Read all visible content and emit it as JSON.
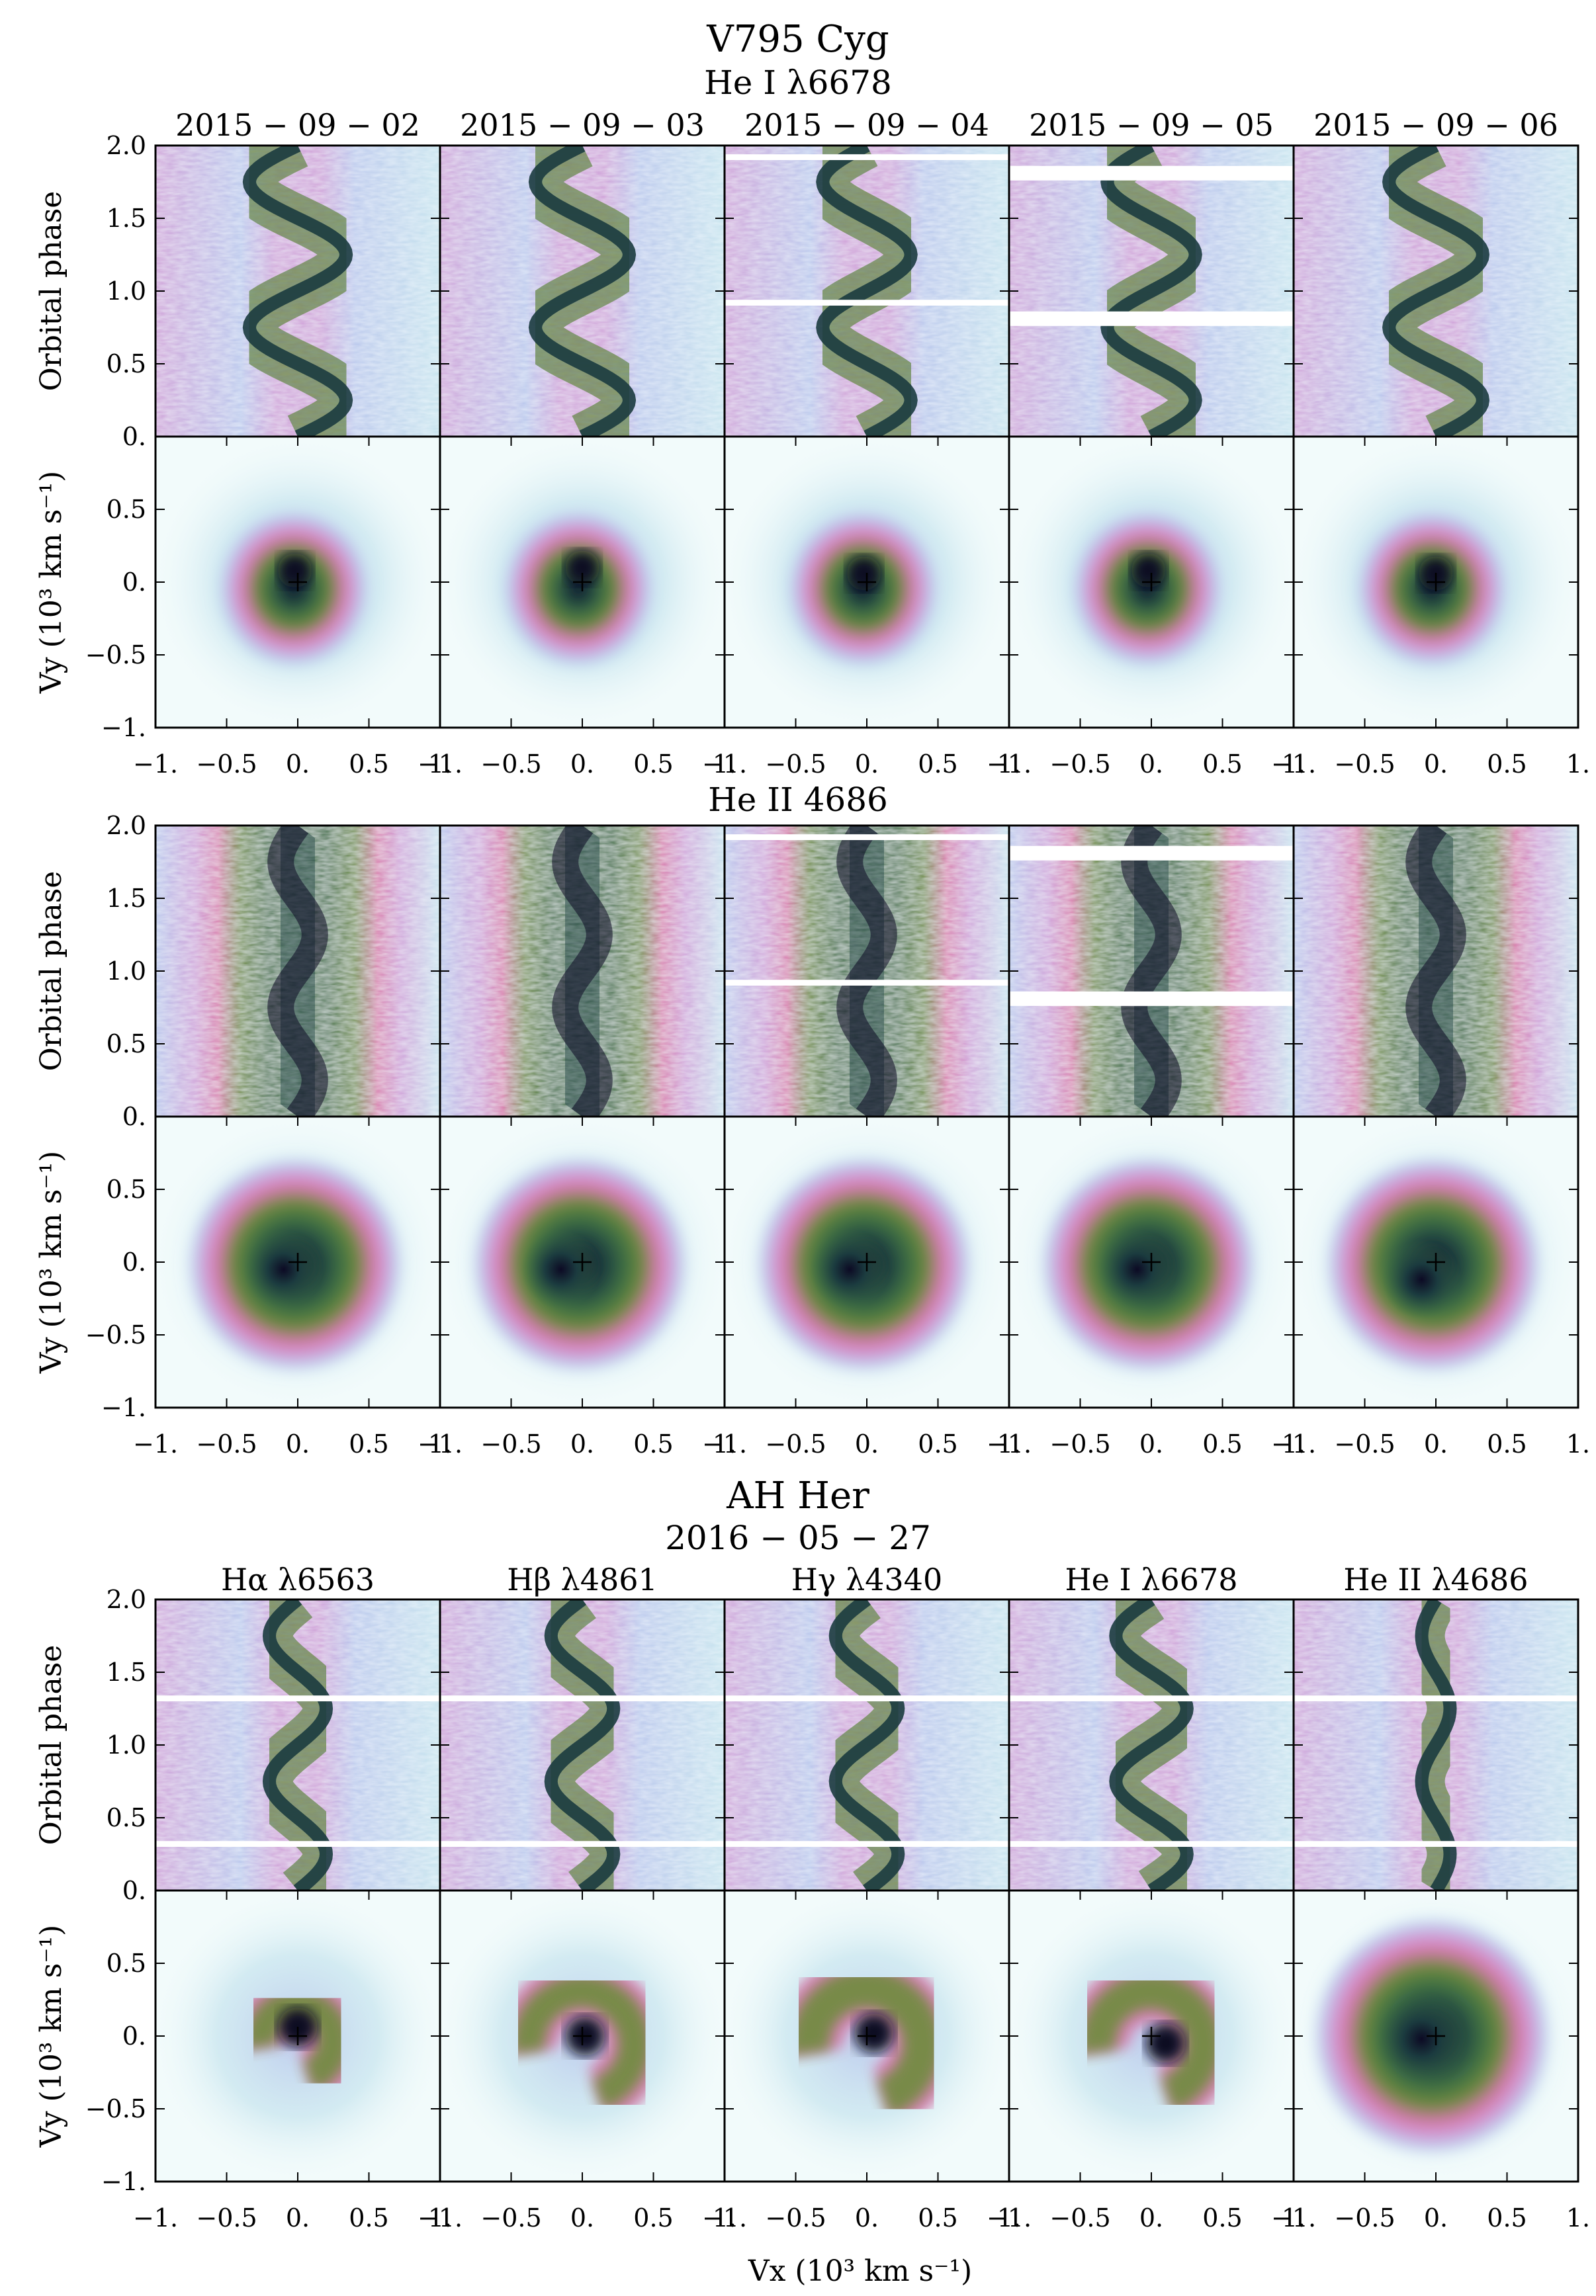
{
  "figure": {
    "title_top": "V795 Cyg",
    "line1": "He I λ6678",
    "line2": "He II 4686",
    "title_bottom": "AH Her",
    "date_bottom": "2016 − 05 − 27",
    "xlabel": "Vx (10³ km s⁻¹)",
    "ylabel_trail": "Orbital phase",
    "ylabel_map": "Vy (10³ km s⁻¹)"
  },
  "colors": {
    "c0": "#f2fbfb",
    "c1": "#c6e4ee",
    "c2": "#b8c6ec",
    "c3": "#cf9fd8",
    "c4": "#d777ab",
    "c5": "#6e8b3d",
    "c6": "#3d6f45",
    "c7": "#1b3b3f",
    "c8": "#0c0a24"
  },
  "chart_data": [
    {
      "type": "heatmap",
      "title": "V795 Cyg — He I λ6678",
      "panel": "trailed spectra",
      "columns": [
        "2015 − 09 − 02",
        "2015 − 09 − 03",
        "2015 − 09 − 04",
        "2015 − 09 − 05",
        "2015 − 09 − 06"
      ],
      "ylabel": "Orbital phase",
      "ylim": [
        0,
        2
      ],
      "yticks": [
        "0.",
        "0.5",
        "1.0",
        "1.5",
        "2.0"
      ],
      "gaps_phase": [
        [],
        [],
        [
          [
            0.9,
            0.94
          ],
          [
            1.9,
            1.94
          ]
        ],
        [
          [
            0.76,
            0.86
          ],
          [
            1.76,
            1.86
          ]
        ],
        []
      ],
      "k_per_column": [
        0.34,
        0.33,
        0.31,
        0.31,
        0.33
      ],
      "gamma_per_column": [
        0.0,
        0.0,
        0.0,
        0.0,
        0.0
      ]
    },
    {
      "type": "heatmap",
      "title": "V795 Cyg — He I λ6678",
      "panel": "Doppler maps",
      "xlabel": "Vx (10³ km s⁻¹)",
      "ylabel": "Vy (10³ km s⁻¹)",
      "xlim": [
        -1,
        1
      ],
      "ylim": [
        -1,
        1
      ],
      "xticks": [
        "−1.",
        "−0.5",
        "0.",
        "0.5",
        "1."
      ],
      "yticks": [
        "−1.",
        "−0.5",
        "0.",
        "0.5"
      ],
      "peak_centre": [
        [
          -0.02,
          0.08
        ],
        [
          0.0,
          0.1
        ],
        [
          -0.02,
          0.06
        ],
        [
          -0.02,
          0.08
        ],
        [
          0.0,
          0.06
        ]
      ]
    },
    {
      "type": "heatmap",
      "title": "V795 Cyg — He II 4686",
      "panel": "trailed spectra",
      "columns": [
        "2015 − 09 − 02",
        "2015 − 09 − 03",
        "2015 − 09 − 04",
        "2015 − 09 − 05",
        "2015 − 09 − 06"
      ],
      "ylabel": "Orbital phase",
      "ylim": [
        0,
        2
      ],
      "yticks": [
        "0.",
        "0.5",
        "1.0",
        "1.5",
        "2.0"
      ],
      "gaps_phase": [
        [],
        [],
        [
          [
            0.9,
            0.94
          ],
          [
            1.9,
            1.94
          ]
        ],
        [
          [
            0.76,
            0.86
          ],
          [
            1.76,
            1.86
          ]
        ],
        []
      ],
      "k_per_column": [
        0.12,
        0.12,
        0.12,
        0.12,
        0.12
      ]
    },
    {
      "type": "heatmap",
      "title": "V795 Cyg — He II 4686",
      "panel": "Doppler maps",
      "xlabel": "Vx (10³ km s⁻¹)",
      "ylabel": "Vy (10³ km s⁻¹)",
      "xlim": [
        -1,
        1
      ],
      "ylim": [
        -1,
        1
      ],
      "xticks": [
        "−1.",
        "−0.5",
        "0.",
        "0.5",
        "1."
      ],
      "yticks": [
        "−1.",
        "−0.5",
        "0.",
        "0.5"
      ],
      "peak_centre": [
        [
          -0.1,
          -0.05
        ],
        [
          -0.15,
          -0.05
        ],
        [
          -0.12,
          -0.05
        ],
        [
          -0.1,
          -0.05
        ],
        [
          -0.1,
          -0.12
        ]
      ]
    },
    {
      "type": "heatmap",
      "title": "AH Her — 2016 − 05 − 27",
      "panel": "trailed spectra",
      "columns": [
        "Hα λ6563",
        "Hβ λ4861",
        "Hγ λ4340",
        "He I λ6678",
        "He II λ4686"
      ],
      "ylabel": "Orbital phase",
      "ylim": [
        0,
        2
      ],
      "yticks": [
        "0.",
        "0.5",
        "1.0",
        "1.5",
        "2.0"
      ],
      "gaps_phase": [
        [
          [
            0.3,
            0.34
          ],
          [
            1.3,
            1.34
          ]
        ],
        [
          [
            0.3,
            0.34
          ],
          [
            1.3,
            1.34
          ]
        ],
        [
          [
            0.3,
            0.34
          ],
          [
            1.3,
            1.34
          ]
        ],
        [
          [
            0.3,
            0.34
          ],
          [
            1.3,
            1.34
          ]
        ],
        [
          [
            0.3,
            0.34
          ],
          [
            1.3,
            1.34
          ]
        ]
      ],
      "k_per_column": [
        0.2,
        0.22,
        0.22,
        0.25,
        0.1
      ]
    },
    {
      "type": "heatmap",
      "title": "AH Her — 2016 − 05 − 27",
      "panel": "Doppler maps",
      "xlabel": "Vx (10³ km s⁻¹)",
      "ylabel": "Vy (10³ km s⁻¹)",
      "xlim": [
        -1,
        1
      ],
      "ylim": [
        -1,
        1
      ],
      "xticks": [
        "−1.",
        "−0.5",
        "0.",
        "0.5",
        "1."
      ],
      "yticks": [
        "−1.",
        "−0.5",
        "0.",
        "0.5"
      ],
      "peak_centre": [
        [
          0.0,
          0.06
        ],
        [
          0.02,
          0.0
        ],
        [
          0.05,
          0.02
        ],
        [
          0.1,
          -0.05
        ],
        [
          -0.1,
          -0.02
        ]
      ]
    }
  ]
}
